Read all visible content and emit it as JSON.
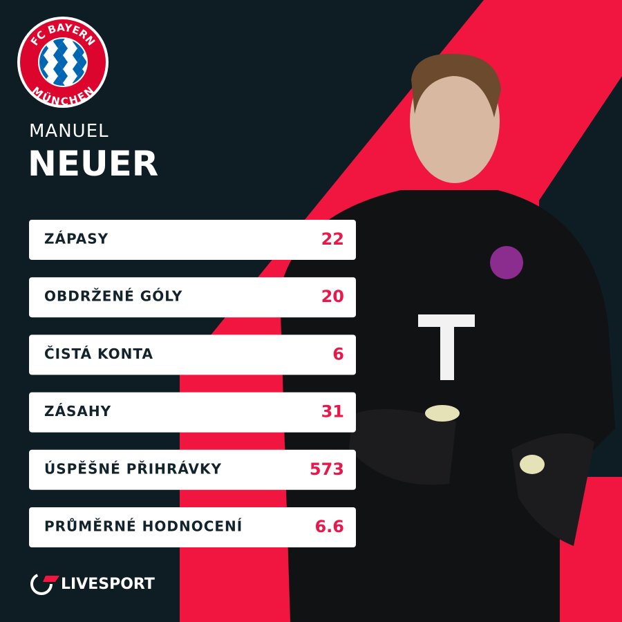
{
  "logo": {
    "top": "FC BAYERN",
    "bottom": "MÜNCHEN"
  },
  "player": {
    "first_name": "MANUEL",
    "last_name": "NEUER"
  },
  "stats": [
    {
      "label": "ZÁPASY",
      "value": 22
    },
    {
      "label": "OBDRŽENÉ GÓLY",
      "value": 20
    },
    {
      "label": "ČISTÁ KONTA",
      "value": 6
    },
    {
      "label": "ZÁSAHY",
      "value": 31
    },
    {
      "label": "ÚSPĚŠNÉ PŘIHRÁVKY",
      "value": 573
    },
    {
      "label": "PRŮMĚRNÉ HODNOCENÍ",
      "value": 6.6
    }
  ],
  "brand": "LIVESPORT"
}
